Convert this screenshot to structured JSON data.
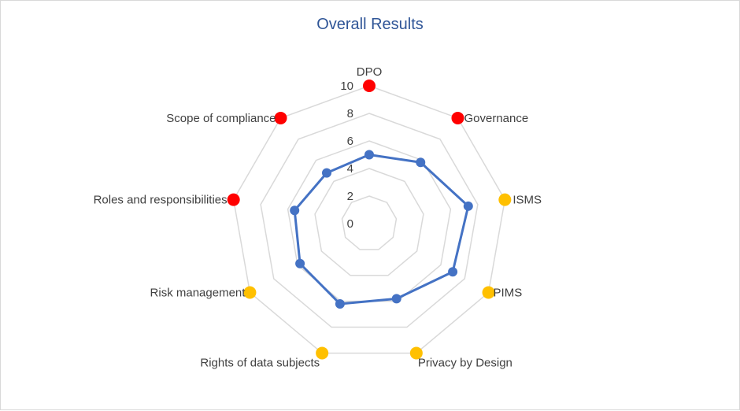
{
  "chart_data": {
    "type": "radar",
    "title": "Overall Results",
    "categories": [
      "DPO",
      "Governance",
      "ISMS",
      "PIMS",
      "Privacy by Design",
      "Rights of data subjects",
      "Risk management",
      "Roles and responsibilities",
      "Scope of compliance"
    ],
    "rlim": [
      0,
      10
    ],
    "ticks": [
      "0",
      "2",
      "4",
      "6",
      "8",
      "10"
    ],
    "series": [
      {
        "values": [
          5,
          5.8,
          7.3,
          7.0,
          5.8,
          6.2,
          5.8,
          5.5,
          4.8
        ],
        "color": "#4472c4"
      }
    ],
    "markers": [
      {
        "category": "DPO",
        "color": "#ff0000"
      },
      {
        "category": "Governance",
        "color": "#ff0000"
      },
      {
        "category": "ISMS",
        "color": "#ffc000"
      },
      {
        "category": "PIMS",
        "color": "#ffc000"
      },
      {
        "category": "Privacy by Design",
        "color": "#ffc000"
      },
      {
        "category": "Rights of data subjects",
        "color": "#ffc000"
      },
      {
        "category": "Risk management",
        "color": "#ffc000"
      },
      {
        "category": "Roles and responsibilities",
        "color": "#ff0000"
      },
      {
        "category": "Scope of compliance",
        "color": "#ff0000"
      }
    ],
    "grid": true
  }
}
